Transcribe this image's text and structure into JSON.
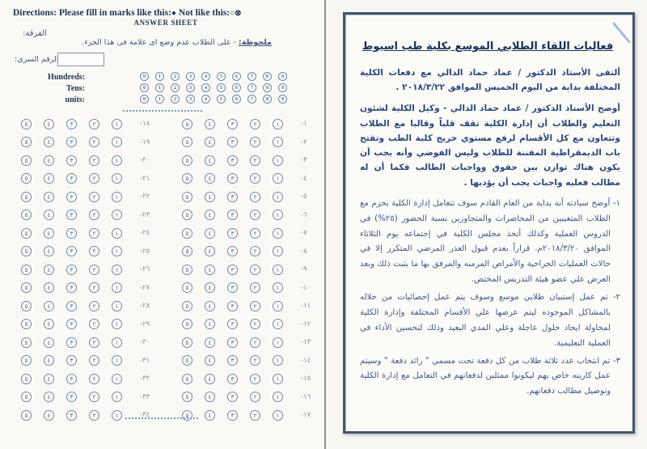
{
  "left_page": {
    "directions": {
      "prefix": "Directions: Please fill in marks like this:",
      "good_mark": "●",
      "middle": " Not like this:",
      "bad_mark": "○⊗"
    },
    "answer_sheet_label": "ANSWER SHEET",
    "grade_label": "الفرقة:",
    "note": {
      "label": "ملحوظة:",
      "text": " - على الطلاب عدم وضع اى علامة فى هذا الجزء."
    },
    "secret_number_label": "الرقم السرى:",
    "digit_rows": [
      {
        "label": "Hundreds:",
        "digits": [
          "0",
          "1",
          "2",
          "3",
          "4",
          "5",
          "6",
          "7",
          "8",
          "9"
        ]
      },
      {
        "label": "Tens:",
        "digits": [
          "0",
          "1",
          "2",
          "3",
          "4",
          "5",
          "6",
          "7",
          "8",
          "9"
        ]
      },
      {
        "label": "units:",
        "digits": [
          "0",
          "1",
          "2",
          "3",
          "4",
          "5",
          "6",
          "7",
          "8",
          "9"
        ]
      }
    ],
    "choices": [
      "٥",
      "٤",
      "٣",
      "٢",
      "١"
    ],
    "questions_right": [
      "١",
      "٢",
      "٣",
      "٤",
      "٥",
      "٦",
      "٧",
      "٨",
      "٩",
      "١٠",
      "١١",
      "١٢",
      "١٣",
      "١٤",
      "١٥",
      "١٦",
      "١٧"
    ],
    "questions_left": [
      "١٨",
      "١٩",
      "٢٠",
      "٢١",
      "٢٢",
      "٢٣",
      "٢٤",
      "٢٥",
      "٢٦",
      "٢٧",
      "٢٨",
      "٢٩",
      "٣٠",
      "٣١",
      "٣٢",
      "٣٣",
      "٣٤"
    ]
  },
  "right_page": {
    "title": "فعاليات اللقاء الطلابي الموسع بكلية طب اسيوط",
    "paragraphs": [
      "ألتقى الأستاذ الدكتور / عماد حماد الدالي مع دفعات الكلية المختلفة  بداية من اليوم الخميس الموافق ٢٠١٨/٣/٢٢ .",
      "أوضح الأستاذ الدكتور / عماد حماد الدالي - وكيل الكلية لشئون التعليم والطلاب أن إدارة الكلية تقف قلباً وقالبا مع الطلاب وتتعاون مع كل الأقسام لرفع مستوي خريج كلية الطب وتفتح باب الديمقراطية المقننة للطلاب وليس الفوضي وأنه يجب أن يكون هناك توازن بين حقوق وواجبات الطالب فكما أن له مطالب فعليه واجبات يجب أن يؤديها ."
    ],
    "items": [
      "١- أوضح سيادته أنه بداية من العام القادم سوف تتعامل إدارة الكلية بحزم مع الطلاب المتغيبين من المحاضرات والمتجاوزين نسبة الحضور (٢٥%) في الدروس العملية وكذلك أتخذ مجلس الكلية في إجتماعه يوم الثلاثاء الموافق ٢٠١٨/٣/٢٠م. قراراً بعدم قبول العذر المرضي المتكرر إلا في حالات العمليات الجراحية والأمراض المزمنه والمرفق بها ما يثبت ذلك وبعد العرض علي عضو هيئة التدريس المختص.",
      "٢- تم عمل إستبيان طلابي موسع وسوف يتم عمل إحصائيات من خلاله بالمشاكل الموجوده ليتم عرضها علي الأقسام المختلفة وإدارة الكلية لمحاولة ايجاد حلول عاجلة وعلي المدي البعيد وذلك لتحسين الأداء في العملية التعليمية.",
      "٣- تم انتخاب عدد ثلاثة طلاب من كل دفعة تحت مسمي \" رائد دفعة \" وسيتم عمل كارينه خاص بهم ليكونوا ممثلين لدفعاتهم في التعامل مع إدارة الكلية وتوصيل مطالب دفعاتهم."
    ]
  },
  "colors": {
    "ink_navy": "#1f3353",
    "bubble_stroke": "#6f88a7",
    "doc_text_blue": "#2e4f86",
    "frame_border": "#42556b",
    "paper": "#faf9f5"
  }
}
